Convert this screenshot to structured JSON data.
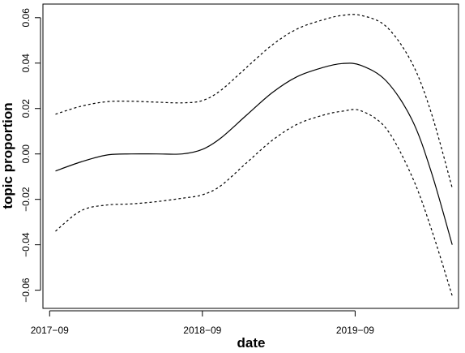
{
  "chart_data": {
    "type": "line",
    "title": "",
    "xlabel": "date",
    "ylabel": "topic proportion",
    "x_axis_kind": "date",
    "xlim": [
      "2017-08-16",
      "2020-05-05"
    ],
    "ylim": [
      -0.068,
      0.066
    ],
    "x_ticks": [
      {
        "date": "2017-09-01",
        "label": "2017−09"
      },
      {
        "date": "2018-09-01",
        "label": "2018−09"
      },
      {
        "date": "2019-09-01",
        "label": "2019−09"
      }
    ],
    "y_ticks": [
      {
        "value": -0.06,
        "label": "−0.06"
      },
      {
        "value": -0.04,
        "label": "−0.04"
      },
      {
        "value": -0.02,
        "label": "−0.02"
      },
      {
        "value": 0.0,
        "label": "0.00"
      },
      {
        "value": 0.02,
        "label": "0.02"
      },
      {
        "value": 0.04,
        "label": "0.04"
      },
      {
        "value": 0.06,
        "label": "0.06"
      }
    ],
    "grid": false,
    "legend": false,
    "series": [
      {
        "role": "estimate",
        "style": "solid",
        "color": "#000000",
        "points": [
          {
            "x": "2017-09-15",
            "y": -0.0075
          },
          {
            "x": "2017-11-15",
            "y": -0.0035
          },
          {
            "x": "2018-01-15",
            "y": -0.0005
          },
          {
            "x": "2018-03-15",
            "y": 0.0
          },
          {
            "x": "2018-05-15",
            "y": 0.0
          },
          {
            "x": "2018-07-15",
            "y": 0.0
          },
          {
            "x": "2018-09-01",
            "y": 0.002
          },
          {
            "x": "2018-10-15",
            "y": 0.007
          },
          {
            "x": "2018-12-15",
            "y": 0.017
          },
          {
            "x": "2019-02-15",
            "y": 0.027
          },
          {
            "x": "2019-04-15",
            "y": 0.034
          },
          {
            "x": "2019-06-15",
            "y": 0.038
          },
          {
            "x": "2019-08-01",
            "y": 0.0398
          },
          {
            "x": "2019-09-15",
            "y": 0.039
          },
          {
            "x": "2019-11-15",
            "y": 0.032
          },
          {
            "x": "2020-01-15",
            "y": 0.015
          },
          {
            "x": "2020-03-01",
            "y": -0.008
          },
          {
            "x": "2020-04-20",
            "y": -0.04
          }
        ]
      },
      {
        "role": "upper bound",
        "style": "dashed",
        "color": "#000000",
        "points": [
          {
            "x": "2017-09-15",
            "y": 0.0175
          },
          {
            "x": "2017-11-15",
            "y": 0.021
          },
          {
            "x": "2018-01-15",
            "y": 0.023
          },
          {
            "x": "2018-03-15",
            "y": 0.0232
          },
          {
            "x": "2018-05-15",
            "y": 0.0228
          },
          {
            "x": "2018-07-15",
            "y": 0.0225
          },
          {
            "x": "2018-09-01",
            "y": 0.0235
          },
          {
            "x": "2018-10-15",
            "y": 0.028
          },
          {
            "x": "2018-12-15",
            "y": 0.038
          },
          {
            "x": "2019-02-15",
            "y": 0.048
          },
          {
            "x": "2019-04-15",
            "y": 0.055
          },
          {
            "x": "2019-06-15",
            "y": 0.059
          },
          {
            "x": "2019-08-01",
            "y": 0.061
          },
          {
            "x": "2019-09-15",
            "y": 0.061
          },
          {
            "x": "2019-11-15",
            "y": 0.056
          },
          {
            "x": "2020-01-15",
            "y": 0.04
          },
          {
            "x": "2020-03-01",
            "y": 0.018
          },
          {
            "x": "2020-04-20",
            "y": -0.015
          }
        ]
      },
      {
        "role": "lower bound",
        "style": "dashed",
        "color": "#000000",
        "points": [
          {
            "x": "2017-09-15",
            "y": -0.034
          },
          {
            "x": "2017-11-15",
            "y": -0.025
          },
          {
            "x": "2018-01-15",
            "y": -0.0225
          },
          {
            "x": "2018-03-15",
            "y": -0.022
          },
          {
            "x": "2018-05-15",
            "y": -0.021
          },
          {
            "x": "2018-07-15",
            "y": -0.0195
          },
          {
            "x": "2018-09-01",
            "y": -0.018
          },
          {
            "x": "2018-10-15",
            "y": -0.014
          },
          {
            "x": "2018-12-15",
            "y": -0.004
          },
          {
            "x": "2019-02-15",
            "y": 0.006
          },
          {
            "x": "2019-04-15",
            "y": 0.013
          },
          {
            "x": "2019-06-15",
            "y": 0.017
          },
          {
            "x": "2019-08-01",
            "y": 0.0188
          },
          {
            "x": "2019-09-15",
            "y": 0.019
          },
          {
            "x": "2019-11-15",
            "y": 0.011
          },
          {
            "x": "2020-01-15",
            "y": -0.01
          },
          {
            "x": "2020-03-01",
            "y": -0.033
          },
          {
            "x": "2020-04-20",
            "y": -0.0625
          }
        ]
      }
    ]
  }
}
